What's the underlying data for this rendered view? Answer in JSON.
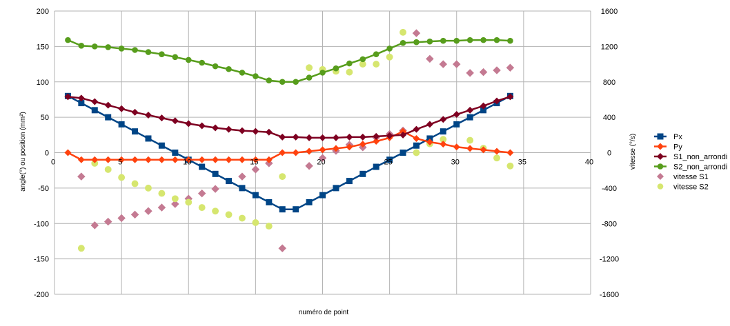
{
  "chart_data": {
    "type": "scatter",
    "title": "",
    "xlabel": "numéro de point",
    "ylabel": "angle(°) ou position (mm²)",
    "y2label": "vitesse (°/s)",
    "xlim": [
      0,
      40
    ],
    "ylim": [
      -200,
      200
    ],
    "y2lim": [
      -1600,
      1600
    ],
    "x_ticks": [
      0,
      5,
      10,
      15,
      20,
      25,
      30,
      35,
      40
    ],
    "y_ticks": [
      -200,
      -150,
      -100,
      -50,
      0,
      50,
      100,
      150,
      200
    ],
    "y2_ticks": [
      -1600,
      -1200,
      -800,
      -400,
      0,
      400,
      800,
      1200,
      1600
    ],
    "grid": true,
    "legend": "right",
    "series": [
      {
        "name": "Px",
        "axis": "left",
        "style": "line-square",
        "color": "#004586",
        "x": [
          1,
          2,
          3,
          4,
          5,
          6,
          7,
          8,
          9,
          10,
          11,
          12,
          13,
          14,
          15,
          16,
          17,
          18,
          19,
          20,
          21,
          22,
          23,
          24,
          25,
          26,
          27,
          28,
          29,
          30,
          31,
          32,
          33,
          34
        ],
        "y": [
          80,
          70,
          60,
          50,
          40,
          30,
          20,
          10,
          0,
          -10,
          -20,
          -30,
          -40,
          -50,
          -60,
          -70,
          -80,
          -80,
          -70,
          -60,
          -50,
          -40,
          -30,
          -20,
          -10,
          0,
          10,
          20,
          30,
          40,
          50,
          60,
          70,
          80
        ]
      },
      {
        "name": "Py",
        "axis": "left",
        "style": "line-diamond",
        "color": "#ff420e",
        "x": [
          1,
          2,
          3,
          4,
          5,
          6,
          7,
          8,
          9,
          10,
          11,
          12,
          13,
          14,
          15,
          16,
          17,
          18,
          19,
          20,
          21,
          22,
          23,
          24,
          25,
          26,
          27,
          28,
          29,
          30,
          31,
          32,
          33,
          34
        ],
        "y": [
          0,
          -10,
          -10,
          -10,
          -10,
          -10,
          -10,
          -10,
          -10,
          -10,
          -10,
          -10,
          -10,
          -10,
          -10,
          -10,
          0,
          0,
          2,
          4,
          6,
          8,
          12,
          16,
          21,
          30,
          20,
          15,
          12,
          8,
          6,
          4,
          2,
          0
        ]
      },
      {
        "name": "S1_non_arrondi",
        "axis": "left",
        "style": "line-diamond",
        "color": "#7e0021",
        "x": [
          1,
          2,
          3,
          4,
          5,
          6,
          7,
          8,
          9,
          10,
          11,
          12,
          13,
          14,
          15,
          16,
          17,
          18,
          19,
          20,
          21,
          22,
          23,
          24,
          25,
          26,
          27,
          28,
          29,
          30,
          31,
          32,
          33,
          34
        ],
        "y": [
          79,
          77,
          72,
          67,
          62,
          57,
          53,
          49,
          45,
          41,
          38,
          35,
          33,
          31,
          30,
          29,
          22,
          22,
          21,
          21,
          21,
          22,
          22,
          23,
          24,
          25,
          33,
          40,
          47,
          54,
          60,
          66,
          73,
          79
        ]
      },
      {
        "name": "S2_non_arrondi",
        "axis": "left",
        "style": "line-circle",
        "color": "#579d1c",
        "x": [
          1,
          2,
          3,
          4,
          5,
          6,
          7,
          8,
          9,
          10,
          11,
          12,
          13,
          14,
          15,
          16,
          17,
          18,
          19,
          20,
          21,
          22,
          23,
          24,
          25,
          26,
          27,
          28,
          29,
          30,
          31,
          32,
          33,
          34
        ],
        "y": [
          159,
          151,
          150,
          149,
          147,
          145,
          142,
          139,
          135,
          131,
          127,
          122,
          118,
          113,
          108,
          102,
          100,
          100,
          106,
          113,
          119,
          126,
          132,
          139,
          147,
          155,
          156,
          157,
          158,
          158,
          159,
          159,
          159,
          158
        ]
      },
      {
        "name": "vitesse S1",
        "axis": "right",
        "style": "diamond",
        "color": "#c47a92",
        "x": [
          2,
          3,
          4,
          5,
          6,
          7,
          8,
          9,
          10,
          11,
          12,
          14,
          15,
          16,
          17,
          19,
          20,
          21,
          22,
          23,
          24,
          25,
          26,
          27,
          28,
          29,
          30,
          31,
          32,
          33,
          34
        ],
        "y": [
          -270,
          -820,
          -780,
          -740,
          -700,
          -660,
          -620,
          -580,
          -520,
          -460,
          -410,
          -270,
          -190,
          -120,
          -1080,
          -150,
          -60,
          20,
          90,
          60,
          170,
          210,
          250,
          1350,
          1060,
          1000,
          1000,
          900,
          910,
          930,
          960
        ]
      },
      {
        "name": "vitesse S2",
        "axis": "right",
        "style": "circle",
        "color": "#d6e66f",
        "x": [
          2,
          3,
          4,
          5,
          6,
          7,
          8,
          9,
          10,
          11,
          12,
          13,
          14,
          15,
          16,
          17,
          19,
          20,
          21,
          22,
          23,
          24,
          25,
          26,
          27,
          28,
          29,
          31,
          32,
          33,
          34
        ],
        "y": [
          -1080,
          -120,
          -190,
          -280,
          -350,
          -400,
          -460,
          -520,
          -560,
          -620,
          -660,
          -700,
          -740,
          -790,
          -830,
          -270,
          960,
          940,
          920,
          910,
          1000,
          1000,
          1080,
          1360,
          0,
          100,
          150,
          140,
          50,
          -60,
          -150
        ]
      }
    ]
  }
}
